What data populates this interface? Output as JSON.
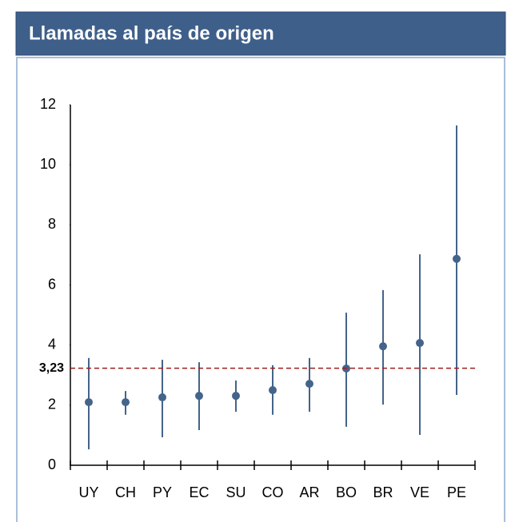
{
  "chart_data": {
    "type": "errorbar",
    "title": "Llamadas al país de origen",
    "categories": [
      "UY",
      "CH",
      "PY",
      "EC",
      "SU",
      "CO",
      "AR",
      "BO",
      "BR",
      "VE",
      "PE"
    ],
    "values": [
      2.1,
      2.1,
      2.26,
      2.31,
      2.31,
      2.5,
      2.71,
      3.22,
      3.96,
      4.07,
      6.87
    ],
    "upper": [
      3.57,
      2.47,
      3.51,
      3.43,
      2.82,
      3.33,
      3.57,
      5.08,
      5.83,
      7.02,
      11.31
    ],
    "lower": [
      0.53,
      1.68,
      0.93,
      1.17,
      1.78,
      1.68,
      1.78,
      1.28,
      2.02,
      1.01,
      2.34
    ],
    "color": "#44648a",
    "ylim": [
      0,
      12
    ],
    "yticks": [
      0,
      2,
      4,
      6,
      8,
      10,
      12
    ],
    "reference_line": {
      "value": 3.23,
      "label": "3,23",
      "color": "#a01c1c"
    }
  }
}
